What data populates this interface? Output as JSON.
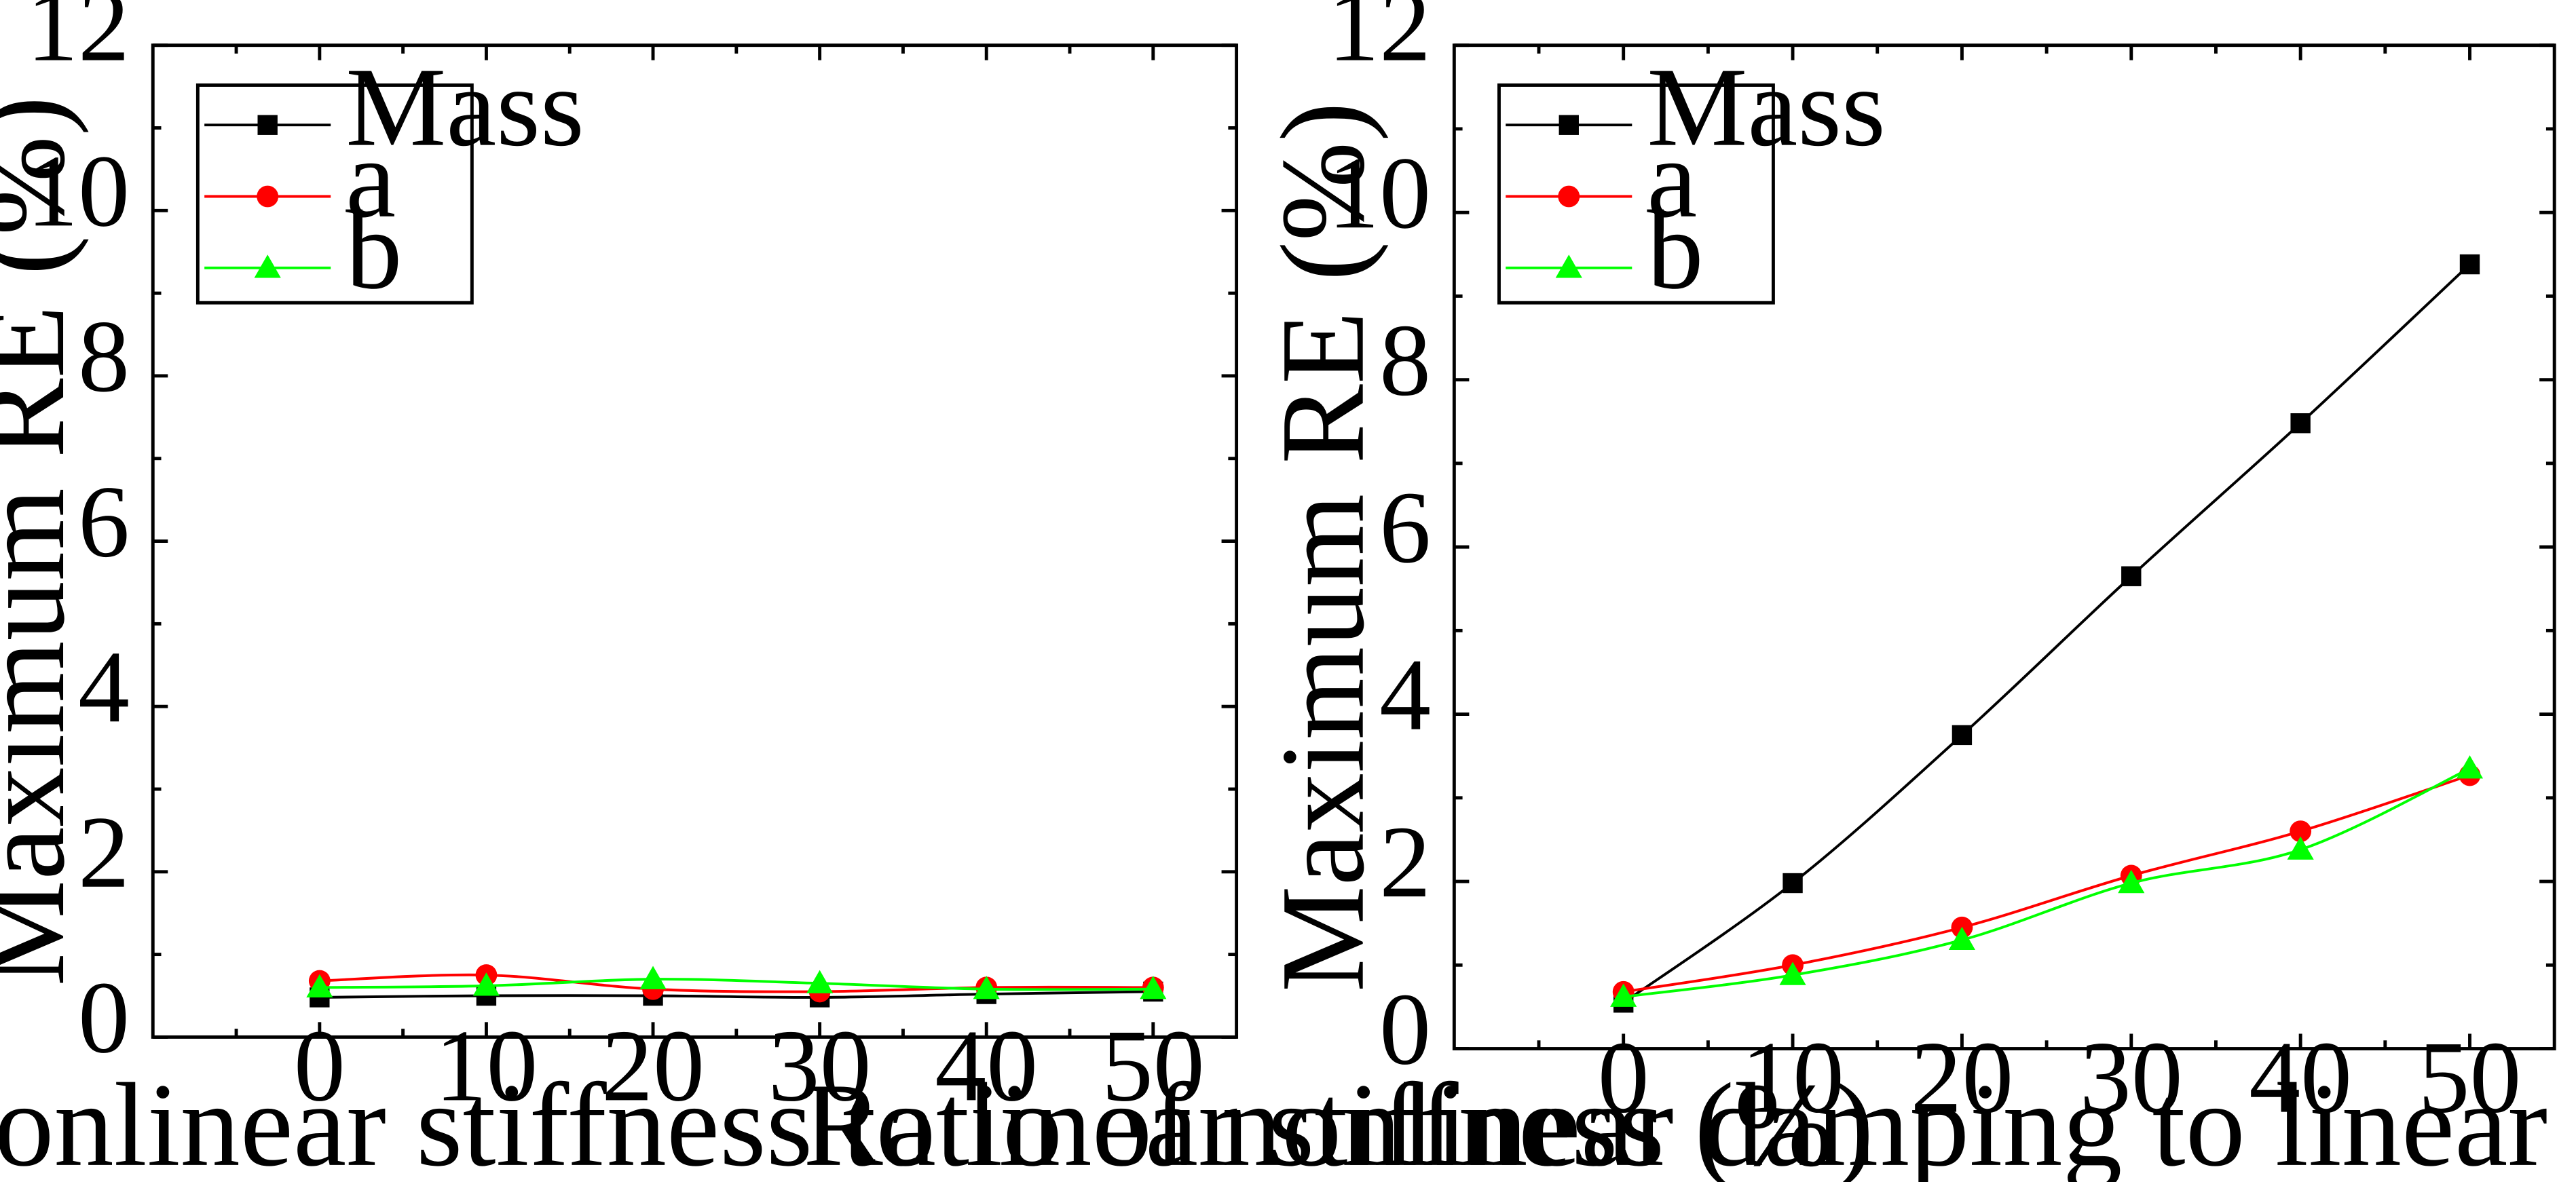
{
  "chart_data": [
    {
      "type": "line",
      "xlabel": "Ratio of nonlinear stiffness to linear stiffness  (%)",
      "ylabel": "Maximum RE (%)",
      "x": [
        0,
        10,
        20,
        30,
        40,
        50
      ],
      "xlim": [
        -10,
        55
      ],
      "ylim": [
        0,
        12
      ],
      "xticks": [
        0,
        10,
        20,
        30,
        40,
        50
      ],
      "yticks": [
        0,
        2,
        4,
        6,
        8,
        10,
        12
      ],
      "grid": false,
      "legend_position": "top-left",
      "series": [
        {
          "name": "Mass",
          "color": "#000000",
          "marker": "square",
          "values": [
            0.48,
            0.5,
            0.5,
            0.48,
            0.52,
            0.55
          ]
        },
        {
          "name": "a",
          "color": "#ff0000",
          "marker": "circle",
          "values": [
            0.68,
            0.75,
            0.58,
            0.55,
            0.6,
            0.6
          ]
        },
        {
          "name": "b",
          "color": "#00ff00",
          "marker": "triangle",
          "values": [
            0.6,
            0.62,
            0.7,
            0.65,
            0.58,
            0.58
          ]
        }
      ]
    },
    {
      "type": "line",
      "xlabel": "Ratio of nonlinear damping to linear damping  (%)",
      "ylabel": "Maximum RE (%)",
      "x": [
        0,
        10,
        20,
        30,
        40,
        50
      ],
      "xlim": [
        -10,
        55
      ],
      "ylim": [
        0,
        12
      ],
      "xticks": [
        0,
        10,
        20,
        30,
        40,
        50
      ],
      "yticks": [
        0,
        2,
        4,
        6,
        8,
        10,
        12
      ],
      "grid": false,
      "legend_position": "top-left",
      "series": [
        {
          "name": "Mass",
          "color": "#000000",
          "marker": "square",
          "values": [
            0.55,
            1.98,
            3.75,
            5.65,
            7.48,
            9.38
          ]
        },
        {
          "name": "a",
          "color": "#ff0000",
          "marker": "circle",
          "values": [
            0.68,
            1.0,
            1.45,
            2.07,
            2.6,
            3.27
          ]
        },
        {
          "name": "b",
          "color": "#00ff00",
          "marker": "triangle",
          "values": [
            0.62,
            0.88,
            1.3,
            1.98,
            2.38,
            3.35
          ]
        }
      ]
    }
  ]
}
